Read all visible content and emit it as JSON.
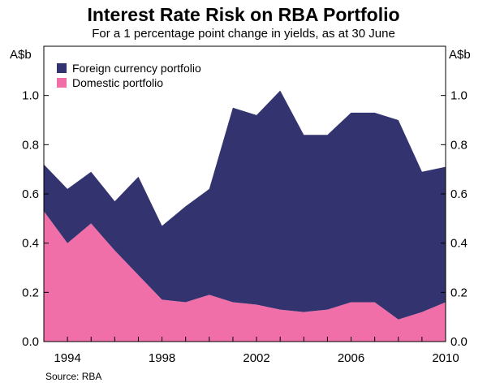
{
  "chart_data": {
    "type": "area",
    "title": "Interest Rate Risk on RBA Portfolio",
    "subtitle": "For a 1 percentage point change in yields, as at 30 June",
    "ylabel_left": "A$b",
    "ylabel_right": "A$b",
    "source": "Source: RBA",
    "stacked": true,
    "ylim": [
      0,
      1.2
    ],
    "y_ticks": [
      "0.0",
      "0.2",
      "0.4",
      "0.6",
      "0.8",
      "1.0"
    ],
    "x_tick_labels": [
      "1994",
      "1998",
      "2002",
      "2006",
      "2010"
    ],
    "xlim": [
      1993,
      2010
    ],
    "x": [
      1993,
      1994,
      1995,
      1996,
      1997,
      1998,
      1999,
      2000,
      2001,
      2002,
      2003,
      2004,
      2005,
      2006,
      2007,
      2008,
      2009,
      2010
    ],
    "series": [
      {
        "name": "Domestic portfolio",
        "color": "#f06fa8",
        "values": [
          0.53,
          0.4,
          0.48,
          0.37,
          0.27,
          0.17,
          0.16,
          0.19,
          0.16,
          0.15,
          0.13,
          0.12,
          0.13,
          0.16,
          0.16,
          0.09,
          0.12,
          0.16
        ]
      },
      {
        "name": "Foreign currency portfolio",
        "color": "#32336f",
        "values": [
          0.19,
          0.22,
          0.21,
          0.2,
          0.4,
          0.3,
          0.39,
          0.43,
          0.79,
          0.77,
          0.89,
          0.72,
          0.71,
          0.77,
          0.77,
          0.81,
          0.57,
          0.55
        ]
      }
    ],
    "legend": {
      "placement": "top-left",
      "entries": [
        "Foreign currency portfolio",
        "Domestic portfolio"
      ]
    }
  }
}
